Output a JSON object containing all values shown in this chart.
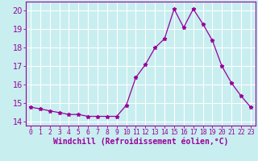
{
  "x": [
    0,
    1,
    2,
    3,
    4,
    5,
    6,
    7,
    8,
    9,
    10,
    11,
    12,
    13,
    14,
    15,
    16,
    17,
    18,
    19,
    20,
    21,
    22,
    23
  ],
  "y": [
    14.8,
    14.7,
    14.6,
    14.5,
    14.4,
    14.4,
    14.3,
    14.3,
    14.3,
    14.3,
    14.9,
    16.4,
    17.1,
    18.0,
    18.5,
    20.1,
    19.1,
    20.1,
    19.3,
    18.4,
    17.0,
    16.1,
    15.4,
    14.8
  ],
  "line_color": "#990099",
  "marker": "*",
  "marker_size": 3.5,
  "bg_color": "#c8eef0",
  "grid_color": "#ffffff",
  "xlabel": "Windchill (Refroidissement éolien,°C)",
  "xlabel_fontsize": 7,
  "ylabel_fontsize": 7,
  "ylim": [
    13.8,
    20.5
  ],
  "yticks": [
    14,
    15,
    16,
    17,
    18,
    19,
    20
  ],
  "xtick_labels": [
    "0",
    "1",
    "2",
    "3",
    "4",
    "5",
    "6",
    "7",
    "8",
    "9",
    "10",
    "11",
    "12",
    "13",
    "14",
    "15",
    "16",
    "17",
    "18",
    "19",
    "20",
    "21",
    "22",
    "23"
  ]
}
